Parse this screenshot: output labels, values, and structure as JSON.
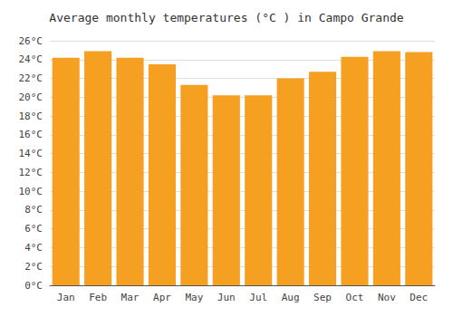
{
  "chart_data": {
    "type": "bar",
    "title": "Average monthly temperatures (°C ) in Campo Grande",
    "categories": [
      "Jan",
      "Feb",
      "Mar",
      "Apr",
      "May",
      "Jun",
      "Jul",
      "Aug",
      "Sep",
      "Oct",
      "Nov",
      "Dec"
    ],
    "values": [
      24.2,
      24.9,
      24.2,
      23.5,
      21.3,
      20.2,
      20.2,
      22.0,
      22.7,
      24.3,
      24.9,
      24.8
    ],
    "color": "#F5A020",
    "ylim": [
      0,
      26
    ],
    "yticks": [
      {
        "value": 0,
        "label": "0°C"
      },
      {
        "value": 2,
        "label": "2°C"
      },
      {
        "value": 4,
        "label": "4°C"
      },
      {
        "value": 6,
        "label": "6°C"
      },
      {
        "value": 8,
        "label": "8°C"
      },
      {
        "value": 10,
        "label": "10°C"
      },
      {
        "value": 12,
        "label": "12°C"
      },
      {
        "value": 14,
        "label": "14°C"
      },
      {
        "value": 16,
        "label": "16°C"
      },
      {
        "value": 18,
        "label": "18°C"
      },
      {
        "value": 20,
        "label": "20°C"
      },
      {
        "value": 22,
        "label": "22°C"
      },
      {
        "value": 24,
        "label": "24°C"
      },
      {
        "value": 26,
        "label": "26°C"
      }
    ],
    "grid": true
  }
}
